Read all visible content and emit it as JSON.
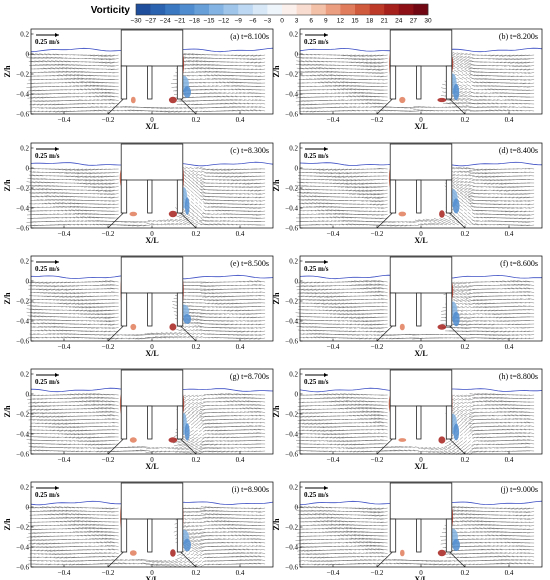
{
  "colorbar": {
    "title": "Vorticity",
    "ticks": [
      -30,
      -27,
      -24,
      -21,
      -18,
      -15,
      -12,
      -9,
      -6,
      -3,
      0,
      3,
      6,
      9,
      12,
      15,
      18,
      21,
      24,
      27,
      30
    ],
    "tick_labels": [
      "−30",
      "−27",
      "−24",
      "−21",
      "−18",
      "−15",
      "−12",
      "−9",
      "−6",
      "−3",
      "0",
      "3",
      "6",
      "9",
      "12",
      "15",
      "18",
      "21",
      "24",
      "27",
      "30"
    ],
    "colors": [
      "#1f4e9c",
      "#2b63b1",
      "#3a78c2",
      "#4f8ccf",
      "#679fd9",
      "#82b3e2",
      "#9fc6ea",
      "#bcd8f2",
      "#d8e8f7",
      "#eef5fb",
      "#fbf0ec",
      "#f8dccf",
      "#f3c0a8",
      "#ec9f80",
      "#e07c5b",
      "#d05a3c",
      "#bd3a28",
      "#a6201c",
      "#8c1016",
      "#700713"
    ]
  },
  "common": {
    "scale_label": "0.25 m/s",
    "ylabel": "Z/h",
    "xlabel": "X/L",
    "xticks": [
      "−0.4",
      "−0.2",
      "0",
      "0.2",
      "0.4"
    ],
    "yticks": [
      "0.2",
      "0",
      "−0.2",
      "−0.4",
      "−0.6"
    ]
  },
  "chart_data": [
    {
      "type": "vector-field",
      "panel": "(a)",
      "time": "t=8.100s",
      "xlabel": "X/L",
      "ylabel": "Z/h",
      "xlim": [
        -0.55,
        0.55
      ],
      "ylim": [
        -0.6,
        0.25
      ]
    },
    {
      "type": "vector-field",
      "panel": "(b)",
      "time": "t=8.200s",
      "xlabel": "X/L",
      "ylabel": "Z/h",
      "xlim": [
        -0.55,
        0.55
      ],
      "ylim": [
        -0.6,
        0.25
      ]
    },
    {
      "type": "vector-field",
      "panel": "(c)",
      "time": "t=8.300s",
      "xlabel": "X/L",
      "ylabel": "Z/h",
      "xlim": [
        -0.55,
        0.55
      ],
      "ylim": [
        -0.6,
        0.25
      ]
    },
    {
      "type": "vector-field",
      "panel": "(d)",
      "time": "t=8.400s",
      "xlabel": "X/L",
      "ylabel": "Z/h",
      "xlim": [
        -0.55,
        0.55
      ],
      "ylim": [
        -0.6,
        0.25
      ]
    },
    {
      "type": "vector-field",
      "panel": "(e)",
      "time": "t=8.500s",
      "xlabel": "X/L",
      "ylabel": "Z/h",
      "xlim": [
        -0.55,
        0.55
      ],
      "ylim": [
        -0.6,
        0.25
      ]
    },
    {
      "type": "vector-field",
      "panel": "(f)",
      "time": "t=8.600s",
      "xlabel": "X/L",
      "ylabel": "Z/h",
      "xlim": [
        -0.55,
        0.55
      ],
      "ylim": [
        -0.6,
        0.25
      ]
    },
    {
      "type": "vector-field",
      "panel": "(g)",
      "time": "t=8.700s",
      "xlabel": "X/L",
      "ylabel": "Z/h",
      "xlim": [
        -0.55,
        0.55
      ],
      "ylim": [
        -0.6,
        0.25
      ]
    },
    {
      "type": "vector-field",
      "panel": "(h)",
      "time": "t=8.800s",
      "xlabel": "X/L",
      "ylabel": "Z/h",
      "xlim": [
        -0.55,
        0.55
      ],
      "ylim": [
        -0.6,
        0.25
      ]
    },
    {
      "type": "vector-field",
      "panel": "(i)",
      "time": "t=8.900s",
      "xlabel": "X/L",
      "ylabel": "Z/h",
      "xlim": [
        -0.55,
        0.55
      ],
      "ylim": [
        -0.6,
        0.25
      ]
    },
    {
      "type": "vector-field",
      "panel": "(j)",
      "time": "t=9.000s",
      "xlabel": "X/L",
      "ylabel": "Z/h",
      "xlim": [
        -0.55,
        0.55
      ],
      "ylim": [
        -0.6,
        0.25
      ]
    }
  ]
}
